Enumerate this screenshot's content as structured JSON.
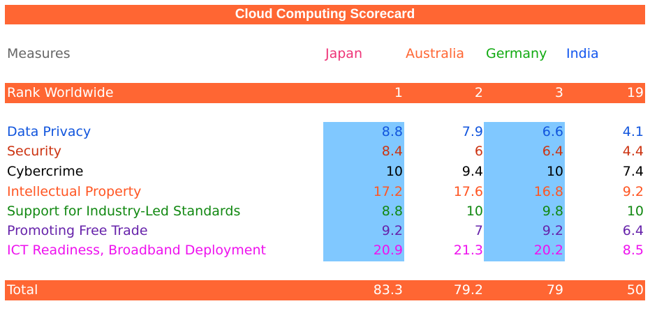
{
  "chart_data": {
    "type": "table",
    "title": "Cloud Computing Scorecard",
    "header_label": "Measures",
    "countries": [
      {
        "name": "Japan",
        "color": "#ee3377",
        "highlight": true
      },
      {
        "name": "Australia",
        "color": "#ff6633",
        "highlight": false
      },
      {
        "name": "Germany",
        "color": "#11aa11",
        "highlight": true
      },
      {
        "name": "India",
        "color": "#1155ee",
        "highlight": false
      }
    ],
    "rank_row": {
      "label": "Rank Worldwide",
      "values": [
        1,
        2,
        3,
        19
      ]
    },
    "rows": [
      {
        "label": "Data Privacy",
        "color": "#1155dd",
        "values": [
          8.8,
          7.9,
          6.6,
          4.1
        ]
      },
      {
        "label": "Security",
        "color": "#cc3311",
        "values": [
          8.4,
          6,
          6.4,
          4.4
        ]
      },
      {
        "label": "Cybercrime",
        "color": "#000000",
        "values": [
          10,
          9.4,
          10,
          7.4
        ]
      },
      {
        "label": "Intellectual Property",
        "color": "#ff5522",
        "values": [
          17.2,
          17.6,
          16.8,
          9.2
        ]
      },
      {
        "label": "Support for Industry-Led Standards",
        "color": "#118811",
        "values": [
          8.8,
          10,
          9.8,
          10
        ]
      },
      {
        "label": "Promoting Free Trade",
        "color": "#6622aa",
        "values": [
          9.2,
          7,
          9.2,
          6.4
        ]
      },
      {
        "label": "ICT Readiness, Broadband Deployment",
        "color": "#ee11ee",
        "values": [
          20.9,
          21.3,
          20.2,
          8.5
        ]
      }
    ],
    "total_row": {
      "label": "Total",
      "values": [
        83.3,
        79.2,
        79,
        50
      ]
    },
    "colors": {
      "accent": "#ff6633",
      "highlight": "#80c8ff",
      "header_label": "#666666",
      "bar_text": "#ffffff"
    }
  }
}
